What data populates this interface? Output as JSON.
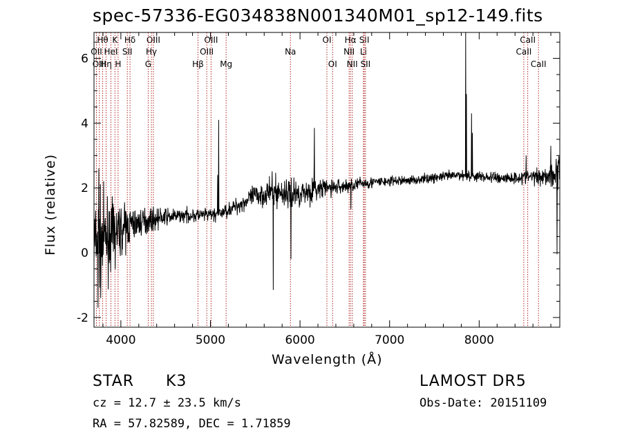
{
  "header": {
    "title": "spec-57336-EG034838N001340M01_sp12-149.fits"
  },
  "footer": {
    "class": "STAR",
    "subclass": "K3",
    "survey": "LAMOST  DR5",
    "cz": "cz = 12.7 ± 23.5 km/s",
    "obs_date": "Obs-Date: 20151109",
    "radec": "RA =  57.82589, DEC =   1.71859"
  },
  "chart_data": {
    "type": "line",
    "xlabel": "Wavelength (Å)",
    "ylabel": "Flux (relative)",
    "xlim": [
      3700,
      8900
    ],
    "ylim": [
      -2.3,
      6.8
    ],
    "x_ticks": [
      4000,
      5000,
      6000,
      7000,
      8000
    ],
    "y_ticks": [
      -2,
      0,
      2,
      4,
      6
    ],
    "grid": false,
    "line_color": "#000000",
    "marker_color": "#b02020",
    "line_markers": [
      {
        "label": "Hθ",
        "x": 3797,
        "row": 0
      },
      {
        "label": "OII",
        "x": 3727,
        "row": 1
      },
      {
        "label": "OIII",
        "x": 3760,
        "row": 2
      },
      {
        "label": "K",
        "x": 3934,
        "row": 0
      },
      {
        "label": "HeI",
        "x": 3889,
        "row": 1
      },
      {
        "label": "Hη",
        "x": 3835,
        "row": 2
      },
      {
        "label": "H",
        "x": 3969,
        "row": 2
      },
      {
        "label": "Hδ",
        "x": 4102,
        "row": 0
      },
      {
        "label": "SII",
        "x": 4072,
        "row": 1
      },
      {
        "label": "OIII",
        "x": 4363,
        "row": 0
      },
      {
        "label": "Hγ",
        "x": 4341,
        "row": 1
      },
      {
        "label": "G",
        "x": 4305,
        "row": 2
      },
      {
        "label": "OIII",
        "x": 5007,
        "row": 0
      },
      {
        "label": "OIII",
        "x": 4959,
        "row": 1
      },
      {
        "label": "Hβ",
        "x": 4861,
        "row": 2
      },
      {
        "label": "Mg",
        "x": 5175,
        "row": 2
      },
      {
        "label": "Na",
        "x": 5893,
        "row": 1
      },
      {
        "label": "OI",
        "x": 6300,
        "row": 0
      },
      {
        "label": "OI",
        "x": 6364,
        "row": 2
      },
      {
        "label": "Hα",
        "x": 6563,
        "row": 0
      },
      {
        "label": "NII",
        "x": 6548,
        "row": 1
      },
      {
        "label": "NII",
        "x": 6583,
        "row": 2
      },
      {
        "label": "SII",
        "x": 6717,
        "row": 0
      },
      {
        "label": "Li",
        "x": 6708,
        "row": 1
      },
      {
        "label": "SII",
        "x": 6731,
        "row": 2
      },
      {
        "label": "CaII",
        "x": 8542,
        "row": 0
      },
      {
        "label": "CaII",
        "x": 8498,
        "row": 1
      },
      {
        "label": "CaII",
        "x": 8662,
        "row": 2
      }
    ],
    "continuum": [
      [
        3700,
        0.3
      ],
      [
        3800,
        0.4
      ],
      [
        3950,
        0.6
      ],
      [
        4100,
        0.85
      ],
      [
        4300,
        1.0
      ],
      [
        4500,
        1.1
      ],
      [
        4700,
        1.15
      ],
      [
        4900,
        1.15
      ],
      [
        5100,
        1.2
      ],
      [
        5300,
        1.45
      ],
      [
        5500,
        1.75
      ],
      [
        5700,
        1.9
      ],
      [
        5900,
        1.8
      ],
      [
        6100,
        1.9
      ],
      [
        6300,
        2.0
      ],
      [
        6500,
        2.05
      ],
      [
        6700,
        2.15
      ],
      [
        7000,
        2.2
      ],
      [
        7300,
        2.25
      ],
      [
        7600,
        2.35
      ],
      [
        7800,
        2.4
      ],
      [
        8000,
        2.35
      ],
      [
        8300,
        2.3
      ],
      [
        8600,
        2.35
      ],
      [
        8800,
        2.4
      ],
      [
        8900,
        2.45
      ]
    ],
    "noise": [
      [
        3700,
        1.0
      ],
      [
        3800,
        0.9
      ],
      [
        3950,
        0.6
      ],
      [
        4200,
        0.3
      ],
      [
        4600,
        0.15
      ],
      [
        5200,
        0.15
      ],
      [
        5800,
        0.35
      ],
      [
        6000,
        0.3
      ],
      [
        6500,
        0.15
      ],
      [
        7200,
        0.1
      ],
      [
        8000,
        0.12
      ],
      [
        8600,
        0.15
      ],
      [
        8900,
        0.35
      ]
    ],
    "features": [
      {
        "x": 5092,
        "y": 4.1
      },
      {
        "x": 5080,
        "y": 2.4
      },
      {
        "x": 5703,
        "y": -1.15
      },
      {
        "x": 5900,
        "y": -0.2
      },
      {
        "x": 6160,
        "y": 3.85
      },
      {
        "x": 6158,
        "y": 2.7
      },
      {
        "x": 6570,
        "y": 1.35
      },
      {
        "x": 7850,
        "y": 6.8
      },
      {
        "x": 7858,
        "y": 4.9
      },
      {
        "x": 7915,
        "y": 4.3
      },
      {
        "x": 7925,
        "y": 3.7
      },
      {
        "x": 3745,
        "y": -1.7
      },
      {
        "x": 3775,
        "y": -1.4
      },
      {
        "x": 3755,
        "y": 2.6
      },
      {
        "x": 8800,
        "y": 3.3
      },
      {
        "x": 8860,
        "y": 2.9
      },
      {
        "x": 8870,
        "y": -0.05
      },
      {
        "x": 8525,
        "y": 3.0
      }
    ]
  }
}
